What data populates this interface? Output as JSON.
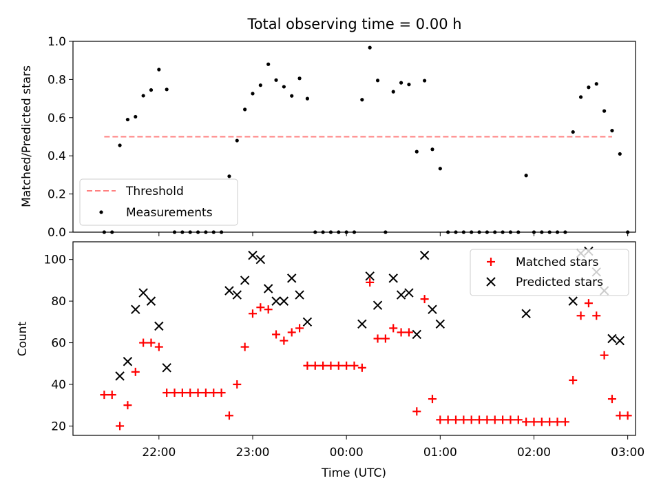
{
  "figure": {
    "title": "Total observing time = 0.00 h"
  },
  "chart_data": [
    {
      "type": "scatter",
      "title": "Total observing time = 0.00 h",
      "ylabel": "Matched/Predicted stars",
      "ylim": [
        0,
        1.0
      ],
      "yticks": [
        0.0,
        0.2,
        0.4,
        0.6,
        0.8,
        1.0
      ],
      "ytick_labels": [
        "0.0",
        "0.2",
        "0.4",
        "0.6",
        "0.8",
        "1.0"
      ],
      "legend_position": "lower-left",
      "threshold": {
        "name": "Threshold",
        "value": 0.5,
        "x_start": "21:25",
        "x_end": "02:50",
        "color": "#ff8080"
      },
      "series": [
        {
          "name": "Measurements",
          "color": "#000000",
          "points": [
            [
              "21:25",
              0.0
            ],
            [
              "21:30",
              0.0
            ],
            [
              "21:35",
              0.455
            ],
            [
              "21:40",
              0.59
            ],
            [
              "21:45",
              0.605
            ],
            [
              "21:50",
              0.715
            ],
            [
              "21:55",
              0.745
            ],
            [
              "22:00",
              0.852
            ],
            [
              "22:05",
              0.748
            ],
            [
              "22:10",
              0.0
            ],
            [
              "22:15",
              0.0
            ],
            [
              "22:20",
              0.0
            ],
            [
              "22:25",
              0.0
            ],
            [
              "22:30",
              0.0
            ],
            [
              "22:35",
              0.0
            ],
            [
              "22:40",
              0.0
            ],
            [
              "22:45",
              0.293
            ],
            [
              "22:50",
              0.48
            ],
            [
              "22:55",
              0.643
            ],
            [
              "23:00",
              0.726
            ],
            [
              "23:05",
              0.77
            ],
            [
              "23:10",
              0.88
            ],
            [
              "23:15",
              0.797
            ],
            [
              "23:20",
              0.762
            ],
            [
              "23:25",
              0.714
            ],
            [
              "23:30",
              0.806
            ],
            [
              "23:35",
              0.7
            ],
            [
              "23:40",
              0.0
            ],
            [
              "23:45",
              0.0
            ],
            [
              "23:50",
              0.0
            ],
            [
              "23:55",
              0.0
            ],
            [
              "00:00",
              0.0
            ],
            [
              "00:05",
              0.0
            ],
            [
              "00:10",
              0.694
            ],
            [
              "00:15",
              0.967
            ],
            [
              "00:20",
              0.795
            ],
            [
              "00:25",
              0.0
            ],
            [
              "00:30",
              0.736
            ],
            [
              "00:35",
              0.783
            ],
            [
              "00:40",
              0.774
            ],
            [
              "00:45",
              0.422
            ],
            [
              "00:50",
              0.794
            ],
            [
              "00:55",
              0.434
            ],
            [
              "01:00",
              0.333
            ],
            [
              "01:05",
              0.0
            ],
            [
              "01:10",
              0.0
            ],
            [
              "01:15",
              0.0
            ],
            [
              "01:20",
              0.0
            ],
            [
              "01:25",
              0.0
            ],
            [
              "01:30",
              0.0
            ],
            [
              "01:35",
              0.0
            ],
            [
              "01:40",
              0.0
            ],
            [
              "01:45",
              0.0
            ],
            [
              "01:50",
              0.0
            ],
            [
              "01:55",
              0.297
            ],
            [
              "02:00",
              0.0
            ],
            [
              "02:05",
              0.0
            ],
            [
              "02:10",
              0.0
            ],
            [
              "02:15",
              0.0
            ],
            [
              "02:20",
              0.0
            ],
            [
              "02:25",
              0.525
            ],
            [
              "02:30",
              0.708
            ],
            [
              "02:35",
              0.759
            ],
            [
              "02:40",
              0.777
            ],
            [
              "02:45",
              0.635
            ],
            [
              "02:50",
              0.532
            ],
            [
              "02:55",
              0.41
            ],
            [
              "03:00",
              0.0
            ]
          ]
        }
      ]
    },
    {
      "type": "scatter",
      "xlabel": "Time (UTC)",
      "ylabel": "Count",
      "ylim": [
        15.5,
        108.5
      ],
      "yticks": [
        20,
        40,
        60,
        80,
        100
      ],
      "ytick_labels": [
        "20",
        "40",
        "60",
        "80",
        "100"
      ],
      "xticks": [
        "22:00",
        "23:00",
        "00:00",
        "01:00",
        "02:00",
        "03:00"
      ],
      "xtick_labels": [
        "22:00",
        "23:00",
        "00:00",
        "01:00",
        "02:00",
        "03:00"
      ],
      "x_range": [
        "21:05",
        "03:05"
      ],
      "legend_position": "top-right",
      "series": [
        {
          "name": "Matched stars",
          "color": "#ff0000",
          "marker": "plus",
          "points": [
            [
              "21:25",
              35
            ],
            [
              "21:30",
              35
            ],
            [
              "21:35",
              20
            ],
            [
              "21:40",
              30
            ],
            [
              "21:45",
              46
            ],
            [
              "21:50",
              60
            ],
            [
              "21:55",
              60
            ],
            [
              "22:00",
              58
            ],
            [
              "22:05",
              36
            ],
            [
              "22:10",
              36
            ],
            [
              "22:15",
              36
            ],
            [
              "22:20",
              36
            ],
            [
              "22:25",
              36
            ],
            [
              "22:30",
              36
            ],
            [
              "22:35",
              36
            ],
            [
              "22:40",
              36
            ],
            [
              "22:45",
              25
            ],
            [
              "22:50",
              40
            ],
            [
              "22:55",
              58
            ],
            [
              "23:00",
              74
            ],
            [
              "23:05",
              77
            ],
            [
              "23:10",
              76
            ],
            [
              "23:15",
              64
            ],
            [
              "23:20",
              61
            ],
            [
              "23:25",
              65
            ],
            [
              "23:30",
              67
            ],
            [
              "23:35",
              49
            ],
            [
              "23:40",
              49
            ],
            [
              "23:45",
              49
            ],
            [
              "23:50",
              49
            ],
            [
              "23:55",
              49
            ],
            [
              "00:00",
              49
            ],
            [
              "00:05",
              49
            ],
            [
              "00:10",
              48
            ],
            [
              "00:15",
              89
            ],
            [
              "00:20",
              62
            ],
            [
              "00:25",
              62
            ],
            [
              "00:30",
              67
            ],
            [
              "00:35",
              65
            ],
            [
              "00:40",
              65
            ],
            [
              "00:45",
              27
            ],
            [
              "00:50",
              81
            ],
            [
              "00:55",
              33
            ],
            [
              "01:00",
              23
            ],
            [
              "01:05",
              23
            ],
            [
              "01:10",
              23
            ],
            [
              "01:15",
              23
            ],
            [
              "01:20",
              23
            ],
            [
              "01:25",
              23
            ],
            [
              "01:30",
              23
            ],
            [
              "01:35",
              23
            ],
            [
              "01:40",
              23
            ],
            [
              "01:45",
              23
            ],
            [
              "01:50",
              23
            ],
            [
              "01:55",
              22
            ],
            [
              "02:00",
              22
            ],
            [
              "02:05",
              22
            ],
            [
              "02:10",
              22
            ],
            [
              "02:15",
              22
            ],
            [
              "02:20",
              22
            ],
            [
              "02:25",
              42
            ],
            [
              "02:30",
              73
            ],
            [
              "02:35",
              79
            ],
            [
              "02:40",
              73
            ],
            [
              "02:45",
              54
            ],
            [
              "02:50",
              33
            ],
            [
              "02:55",
              25
            ],
            [
              "03:00",
              25
            ]
          ]
        },
        {
          "name": "Predicted stars",
          "color": "#000000",
          "marker": "x",
          "points": [
            [
              "21:35",
              44
            ],
            [
              "21:40",
              51
            ],
            [
              "21:45",
              76
            ],
            [
              "21:50",
              84
            ],
            [
              "21:55",
              80
            ],
            [
              "22:00",
              68
            ],
            [
              "22:05",
              48
            ],
            [
              "22:45",
              85
            ],
            [
              "22:50",
              83
            ],
            [
              "22:55",
              90
            ],
            [
              "23:00",
              102
            ],
            [
              "23:05",
              100
            ],
            [
              "23:10",
              86
            ],
            [
              "23:15",
              80
            ],
            [
              "23:20",
              80
            ],
            [
              "23:25",
              91
            ],
            [
              "23:30",
              83
            ],
            [
              "23:35",
              70
            ],
            [
              "00:10",
              69
            ],
            [
              "00:15",
              92
            ],
            [
              "00:20",
              78
            ],
            [
              "00:30",
              91
            ],
            [
              "00:35",
              83
            ],
            [
              "00:40",
              84
            ],
            [
              "00:45",
              64
            ],
            [
              "00:50",
              102
            ],
            [
              "00:55",
              76
            ],
            [
              "01:00",
              69
            ],
            [
              "01:55",
              74
            ],
            [
              "02:25",
              80
            ],
            [
              "02:30",
              103
            ],
            [
              "02:35",
              104
            ],
            [
              "02:40",
              94
            ],
            [
              "02:45",
              85
            ],
            [
              "02:50",
              62
            ],
            [
              "02:55",
              61
            ]
          ]
        }
      ]
    }
  ]
}
